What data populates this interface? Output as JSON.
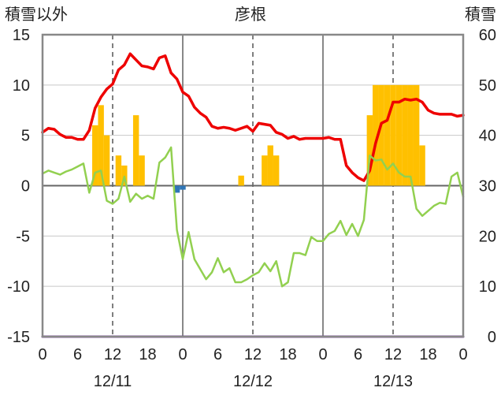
{
  "chart_data": {
    "type": "bar+line",
    "title": "彦根",
    "left_axis_label": "積雪以外",
    "right_axis_label": "積雪",
    "y_left": {
      "min": -15,
      "max": 15,
      "ticks": [
        15,
        10,
        5,
        0,
        -5,
        -10,
        -15
      ]
    },
    "y_right": {
      "min": 0,
      "max": 60,
      "ticks": [
        60,
        50,
        40,
        30,
        20,
        10,
        0
      ]
    },
    "x_range": [
      0,
      72
    ],
    "x_ticks": [
      {
        "x": 0,
        "label": "0"
      },
      {
        "x": 6,
        "label": "6"
      },
      {
        "x": 12,
        "label": "12"
      },
      {
        "x": 18,
        "label": "18"
      },
      {
        "x": 24,
        "label": "0"
      },
      {
        "x": 30,
        "label": "6"
      },
      {
        "x": 36,
        "label": "12"
      },
      {
        "x": 42,
        "label": "18"
      },
      {
        "x": 48,
        "label": "0"
      },
      {
        "x": 54,
        "label": "6"
      },
      {
        "x": 60,
        "label": "12"
      },
      {
        "x": 66,
        "label": "18"
      },
      {
        "x": 72,
        "label": "0"
      }
    ],
    "days": [
      {
        "x": 12,
        "label": "12/11"
      },
      {
        "x": 36,
        "label": "12/12"
      },
      {
        "x": 60,
        "label": "12/13"
      }
    ],
    "precip_bars": [
      {
        "x": 9,
        "value": 6
      },
      {
        "x": 10,
        "value": 8
      },
      {
        "x": 11,
        "value": 5
      },
      {
        "x": 13,
        "value": 3
      },
      {
        "x": 14,
        "value": 2
      },
      {
        "x": 16,
        "value": 7
      },
      {
        "x": 17,
        "value": 3
      },
      {
        "x": 34,
        "value": 1
      },
      {
        "x": 38,
        "value": 3
      },
      {
        "x": 39,
        "value": 4
      },
      {
        "x": 40,
        "value": 3
      },
      {
        "x": 56,
        "value": 7
      },
      {
        "x": 57,
        "value": 10
      },
      {
        "x": 58,
        "value": 10
      },
      {
        "x": 59,
        "value": 10
      },
      {
        "x": 60,
        "value": 10
      },
      {
        "x": 61,
        "value": 10
      },
      {
        "x": 62,
        "value": 10
      },
      {
        "x": 63,
        "value": 10
      },
      {
        "x": 64,
        "value": 10
      },
      {
        "x": 65,
        "value": 4
      }
    ],
    "negative_bars": [
      {
        "x": 23,
        "value": -0.7
      },
      {
        "x": 24,
        "value": -0.4
      }
    ],
    "series": [
      {
        "color": "#ee0000",
        "axis": "left",
        "values": [
          5.3,
          5.7,
          5.6,
          5.1,
          4.8,
          4.8,
          4.6,
          4.6,
          5.5,
          7.7,
          8.8,
          9.6,
          10.1,
          11.5,
          12.0,
          13.1,
          12.5,
          11.9,
          11.8,
          11.6,
          12.7,
          12.9,
          11.2,
          10.6,
          9.3,
          8.9,
          7.8,
          7.2,
          6.8,
          5.9,
          5.7,
          5.8,
          5.7,
          5.5,
          5.7,
          5.9,
          5.4,
          6.2,
          6.1,
          6.0,
          5.3,
          5.1,
          4.7,
          4.9,
          4.6,
          4.7,
          4.7,
          4.7,
          4.7,
          4.8,
          4.6,
          4.6,
          2.0,
          1.3,
          0.8,
          0.5,
          1.5,
          4.2,
          6.2,
          6.5,
          8.3,
          8.3,
          8.6,
          8.5,
          8.6,
          8.3,
          7.5,
          7.2,
          7.1,
          7.1,
          7.1,
          6.9,
          7.0
        ]
      },
      {
        "color": "#92d050",
        "axis": "left",
        "values": [
          1.2,
          1.5,
          1.3,
          1.1,
          1.4,
          1.6,
          1.9,
          2.2,
          -0.7,
          1.3,
          1.5,
          -1.5,
          -1.8,
          -1.3,
          0.9,
          -1.6,
          -0.8,
          -1.3,
          -1.0,
          -1.3,
          2.3,
          2.8,
          3.8,
          -4.4,
          -7.3,
          -4.6,
          -7.3,
          -8.3,
          -9.3,
          -8.6,
          -7.2,
          -8.6,
          -8.2,
          -9.6,
          -9.6,
          -9.3,
          -8.9,
          -8.6,
          -7.7,
          -8.5,
          -7.5,
          -10.0,
          -9.6,
          -6.7,
          -6.7,
          -6.9,
          -5.1,
          -5.5,
          -5.5,
          -4.8,
          -4.5,
          -3.5,
          -4.9,
          -3.8,
          -5.0,
          -3.4,
          3.0,
          2.5,
          2.6,
          1.6,
          2.2,
          1.3,
          0.9,
          0.9,
          -2.3,
          -3.0,
          -2.5,
          -2.0,
          -1.7,
          -1.8,
          0.9,
          1.3,
          -1.1
        ]
      },
      {
        "color": "#7030a0",
        "axis": "right",
        "values": [
          0,
          0
        ]
      }
    ]
  }
}
